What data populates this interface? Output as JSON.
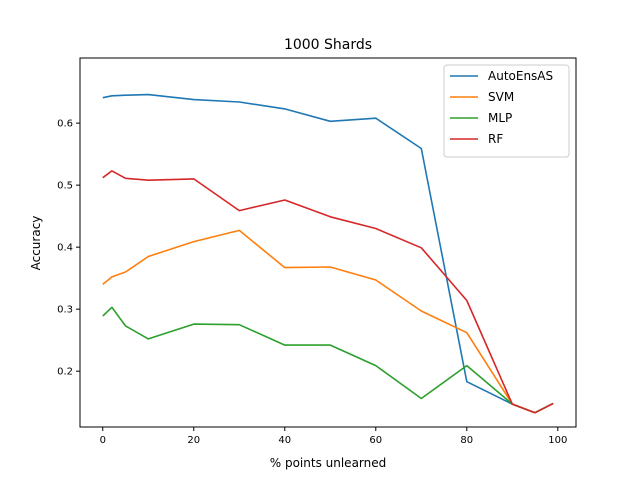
{
  "chart_data": {
    "type": "line",
    "title": "1000 Shards",
    "xlabel": "% points unlearned",
    "ylabel": "Accuracy",
    "xlim": [
      -5,
      104
    ],
    "ylim": [
      0.11,
      0.705
    ],
    "xticks": [
      0,
      20,
      40,
      60,
      80,
      100
    ],
    "yticks": [
      0.2,
      0.3,
      0.4,
      0.5,
      0.6
    ],
    "ytick_labels": [
      "0.2",
      "0.3",
      "0.4",
      "0.5",
      "0.6"
    ],
    "grid": false,
    "legend": "top-right",
    "x": [
      0,
      2,
      5,
      10,
      20,
      30,
      40,
      50,
      60,
      70,
      80,
      90,
      95,
      99
    ],
    "series": [
      {
        "name": "AutoEnsAS",
        "color": "#1f77b4",
        "values": [
          0.641,
          0.644,
          0.645,
          0.646,
          0.638,
          0.634,
          0.623,
          0.603,
          0.608,
          0.559,
          0.183,
          0.147,
          0.133,
          0.148
        ]
      },
      {
        "name": "SVM",
        "color": "#ff7f0e",
        "values": [
          0.34,
          0.352,
          0.36,
          0.385,
          0.409,
          0.427,
          0.367,
          0.368,
          0.347,
          0.297,
          0.262,
          0.147,
          0.133,
          0.148
        ]
      },
      {
        "name": "MLP",
        "color": "#2ca02c",
        "values": [
          0.289,
          0.303,
          0.273,
          0.252,
          0.276,
          0.275,
          0.242,
          0.242,
          0.209,
          0.156,
          0.209,
          0.147,
          0.133,
          0.148
        ]
      },
      {
        "name": "RF",
        "color": "#d62728",
        "values": [
          0.512,
          0.523,
          0.511,
          0.508,
          0.51,
          0.459,
          0.476,
          0.449,
          0.43,
          0.399,
          0.314,
          0.147,
          0.133,
          0.148
        ]
      }
    ]
  }
}
